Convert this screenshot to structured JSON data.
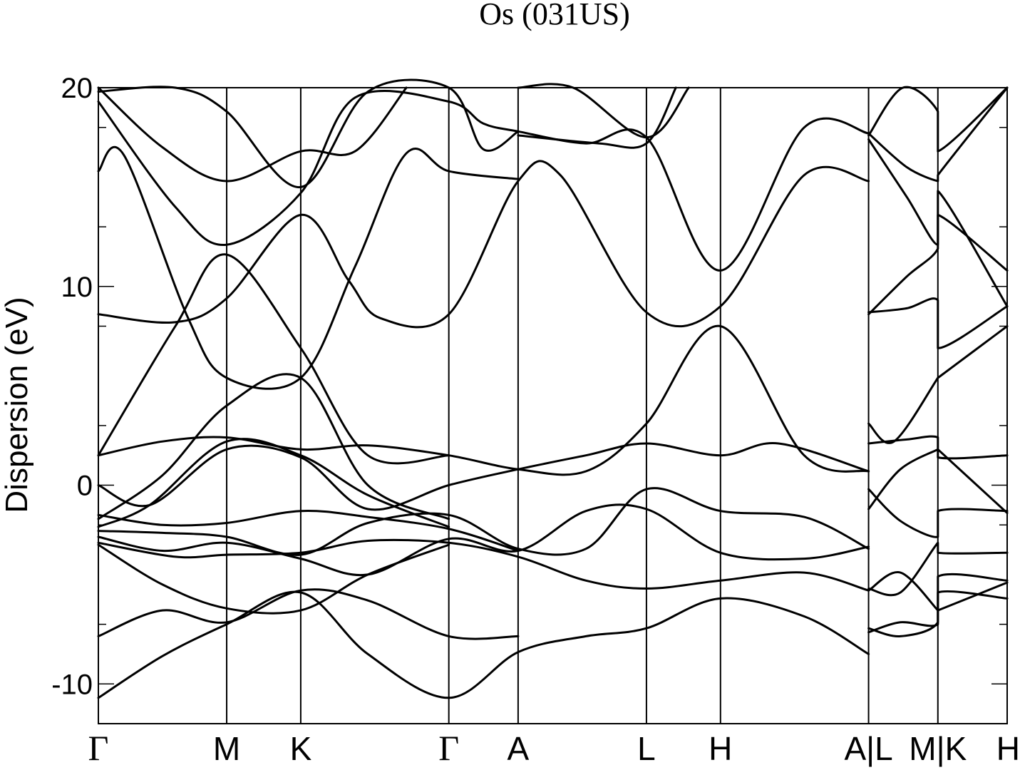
{
  "chart_data": {
    "type": "line",
    "title": "Os (031US)",
    "ylabel": "Dispersion (eV)",
    "ylim": [
      -12,
      20
    ],
    "yticks": [
      -10,
      0,
      10,
      20
    ],
    "grid": false,
    "legend": "none",
    "kpoints": [
      {
        "label": "Γ",
        "x": 0.0
      },
      {
        "label": "M",
        "x": 1.0
      },
      {
        "label": "K",
        "x": 1.577
      },
      {
        "label": "Γ",
        "x": 2.731
      },
      {
        "label": "A",
        "x": 3.271
      },
      {
        "label": "L",
        "x": 4.271
      },
      {
        "label": "H",
        "x": 4.848
      },
      {
        "label": "A|L",
        "x": 6.002
      },
      {
        "label": "M|K",
        "x": 6.542
      },
      {
        "label": "H",
        "x": 7.082
      }
    ],
    "series": [
      {
        "values": [
          [
            0,
            -10.7
          ],
          [
            0.5,
            -8.6
          ],
          [
            1.0,
            -7.0
          ],
          [
            1.577,
            -5.4
          ],
          [
            2.1,
            -8.5
          ],
          [
            2.731,
            -10.7
          ],
          [
            3.271,
            -8.4
          ],
          [
            3.8,
            -7.6
          ],
          [
            4.271,
            -7.2
          ],
          [
            4.848,
            -5.7
          ],
          [
            5.5,
            -6.6
          ],
          [
            6.002,
            -8.5
          ]
        ]
      },
      {
        "values": [
          [
            0,
            -7.6
          ],
          [
            0.5,
            -6.3
          ],
          [
            1.0,
            -6.9
          ],
          [
            1.577,
            -5.3
          ],
          [
            2.1,
            -5.8
          ],
          [
            2.731,
            -7.6
          ],
          [
            3.271,
            -7.6
          ]
        ]
      },
      {
        "values": [
          [
            0,
            -3.0
          ],
          [
            0.5,
            -5.0
          ],
          [
            1.0,
            -6.2
          ],
          [
            1.577,
            -6.3
          ],
          [
            2.1,
            -4.5
          ],
          [
            2.731,
            -3.0
          ]
        ]
      },
      {
        "values": [
          [
            0,
            -2.9
          ],
          [
            0.6,
            -3.6
          ],
          [
            1.0,
            -3.5
          ],
          [
            1.577,
            -3.4
          ],
          [
            2.1,
            -2.8
          ],
          [
            2.731,
            -2.9
          ],
          [
            3.271,
            -3.6
          ],
          [
            3.8,
            -4.8
          ],
          [
            4.271,
            -5.2
          ],
          [
            4.848,
            -4.8
          ],
          [
            5.5,
            -4.4
          ],
          [
            6.002,
            -5.3
          ]
        ]
      },
      {
        "values": [
          [
            0,
            -2.6
          ],
          [
            0.5,
            -3.3
          ],
          [
            1.0,
            -2.9
          ],
          [
            1.577,
            -3.7
          ],
          [
            2.1,
            -4.5
          ],
          [
            2.731,
            -2.7
          ],
          [
            3.271,
            -3.3
          ],
          [
            3.8,
            -1.3
          ],
          [
            4.271,
            -1.2
          ],
          [
            4.848,
            -3.4
          ],
          [
            5.5,
            -3.7
          ],
          [
            6.002,
            -3.1
          ]
        ]
      },
      {
        "values": [
          [
            0,
            -2.3
          ],
          [
            0.5,
            -2.4
          ],
          [
            1.0,
            -2.6
          ],
          [
            1.577,
            -3.5
          ],
          [
            2.1,
            -1.9
          ],
          [
            2.731,
            -1.5
          ],
          [
            3.271,
            -3.2
          ],
          [
            3.8,
            -3.2
          ],
          [
            4.271,
            -0.2
          ],
          [
            4.848,
            -1.3
          ],
          [
            5.5,
            -1.6
          ],
          [
            6.002,
            -3.2
          ]
        ]
      },
      {
        "values": [
          [
            0,
            -1.5
          ],
          [
            0.5,
            -2.0
          ],
          [
            1.0,
            -1.9
          ],
          [
            1.577,
            -1.3
          ],
          [
            2.1,
            -1.6
          ],
          [
            2.731,
            -2.2
          ],
          [
            3.271,
            -3.3
          ]
        ]
      },
      {
        "values": [
          [
            0,
            0.0
          ],
          [
            0.4,
            -1.0
          ],
          [
            1.0,
            1.8
          ],
          [
            1.577,
            1.4
          ],
          [
            2.1,
            -1.2
          ],
          [
            2.731,
            0.0
          ],
          [
            3.271,
            0.8
          ],
          [
            3.8,
            1.5
          ],
          [
            4.271,
            2.1
          ],
          [
            4.848,
            1.5
          ],
          [
            5.3,
            2.1
          ],
          [
            6.002,
            0.7
          ]
        ]
      },
      {
        "values": [
          [
            0,
            1.5
          ],
          [
            0.5,
            2.2
          ],
          [
            1.0,
            2.4
          ],
          [
            1.577,
            1.8
          ],
          [
            2.1,
            2.0
          ],
          [
            2.731,
            1.5
          ],
          [
            3.271,
            0.8
          ],
          [
            3.8,
            0.7
          ],
          [
            4.271,
            3.1
          ],
          [
            4.848,
            8.0
          ],
          [
            5.5,
            1.5
          ],
          [
            6.002,
            0.7
          ]
        ]
      },
      {
        "values": [
          [
            0,
            -2.1
          ],
          [
            0.4,
            -1.0
          ],
          [
            1.0,
            2.2
          ],
          [
            1.577,
            1.5
          ],
          [
            2.1,
            -0.5
          ],
          [
            2.731,
            -2.1
          ]
        ]
      },
      {
        "values": [
          [
            0,
            -1.7
          ],
          [
            0.5,
            0.5
          ],
          [
            1.0,
            4.0
          ],
          [
            1.577,
            5.4
          ],
          [
            2.1,
            0.0
          ],
          [
            2.731,
            -1.7
          ]
        ]
      },
      {
        "values": [
          [
            0,
            8.6
          ],
          [
            0.6,
            8.2
          ],
          [
            1.0,
            9.4
          ],
          [
            1.577,
            13.6
          ],
          [
            1.95,
            10.3
          ],
          [
            2.2,
            8.4
          ],
          [
            2.731,
            8.6
          ],
          [
            3.271,
            15.3
          ],
          [
            3.6,
            15.6
          ],
          [
            4.271,
            8.7
          ],
          [
            4.848,
            9.0
          ],
          [
            5.5,
            15.6
          ],
          [
            6.002,
            15.3
          ]
        ]
      },
      {
        "values": [
          [
            0,
            1.5
          ],
          [
            0.6,
            8.0
          ],
          [
            1.0,
            11.6
          ],
          [
            1.577,
            6.9
          ],
          [
            2.1,
            1.5
          ],
          [
            2.731,
            1.5
          ]
        ]
      },
      {
        "values": [
          [
            0,
            15.8
          ],
          [
            0.2,
            16.6
          ],
          [
            0.7,
            8.4
          ],
          [
            1.0,
            5.4
          ],
          [
            1.577,
            5.4
          ],
          [
            2.0,
            11.0
          ],
          [
            2.4,
            16.7
          ],
          [
            2.731,
            15.8
          ],
          [
            3.271,
            15.4
          ]
        ]
      },
      {
        "values": [
          [
            0,
            19.3
          ],
          [
            0.6,
            14.0
          ],
          [
            1.0,
            12.1
          ],
          [
            1.577,
            14.7
          ],
          [
            2.0,
            19.5
          ],
          [
            2.731,
            19.3
          ],
          [
            3.0,
            18.2
          ],
          [
            3.271,
            17.8
          ],
          [
            3.8,
            17.2
          ],
          [
            4.271,
            17.5
          ],
          [
            4.848,
            10.8
          ],
          [
            5.5,
            18.0
          ],
          [
            6.002,
            17.7
          ]
        ]
      },
      {
        "values": [
          [
            0,
            20.0
          ],
          [
            0.5,
            17.0
          ],
          [
            1.0,
            15.3
          ],
          [
            1.577,
            16.8
          ],
          [
            2.0,
            16.8
          ],
          [
            2.4,
            20.0
          ]
        ]
      },
      {
        "values": [
          [
            0,
            19.8
          ],
          [
            0.6,
            20.0
          ],
          [
            1.0,
            18.8
          ],
          [
            1.577,
            15.0
          ],
          [
            2.1,
            19.8
          ],
          [
            2.731,
            20.0
          ],
          [
            3.0,
            16.9
          ],
          [
            3.271,
            17.8
          ]
        ]
      },
      {
        "values": [
          [
            3.271,
            17.6
          ],
          [
            3.9,
            17.2
          ],
          [
            4.271,
            17.2
          ],
          [
            4.5,
            20.0
          ]
        ]
      },
      {
        "values": [
          [
            3.271,
            20.0
          ],
          [
            3.7,
            20.0
          ],
          [
            4.271,
            17.5
          ],
          [
            4.6,
            20.0
          ]
        ]
      },
      {
        "values": [
          [
            6.002,
            3.1
          ],
          [
            6.2,
            2.2
          ],
          [
            6.542,
            5.4
          ],
          [
            6.542,
            5.4
          ],
          [
            7.082,
            8.0
          ]
        ]
      },
      {
        "values": [
          [
            6.002,
            2.1
          ],
          [
            6.3,
            2.3
          ],
          [
            6.542,
            2.4
          ],
          [
            6.542,
            1.4
          ],
          [
            7.082,
            1.5
          ]
        ]
      },
      {
        "values": [
          [
            6.002,
            -0.2
          ],
          [
            6.25,
            -1.8
          ],
          [
            6.542,
            -2.6
          ],
          [
            6.542,
            -1.3
          ],
          [
            7.082,
            -1.3
          ]
        ]
      },
      {
        "values": [
          [
            6.002,
            -1.2
          ],
          [
            6.25,
            0.8
          ],
          [
            6.542,
            1.8
          ],
          [
            6.542,
            1.8
          ],
          [
            7.082,
            -1.4
          ]
        ]
      },
      {
        "values": [
          [
            6.002,
            -5.2
          ],
          [
            6.25,
            -5.4
          ],
          [
            6.542,
            -2.9
          ],
          [
            6.542,
            -3.4
          ],
          [
            7.082,
            -3.4
          ]
        ]
      },
      {
        "values": [
          [
            6.002,
            -7.2
          ],
          [
            6.25,
            -7.6
          ],
          [
            6.542,
            -6.9
          ],
          [
            6.542,
            -4.6
          ],
          [
            7.082,
            -4.8
          ]
        ]
      },
      {
        "values": [
          [
            6.002,
            -7.4
          ],
          [
            6.25,
            -6.9
          ],
          [
            6.542,
            -7.0
          ],
          [
            6.542,
            -5.4
          ],
          [
            7.082,
            -5.7
          ]
        ]
      },
      {
        "values": [
          [
            6.002,
            8.7
          ],
          [
            6.3,
            8.9
          ],
          [
            6.542,
            9.3
          ],
          [
            6.542,
            6.9
          ],
          [
            7.082,
            9.0
          ]
        ]
      },
      {
        "values": [
          [
            6.002,
            8.6
          ],
          [
            6.3,
            10.5
          ],
          [
            6.542,
            11.9
          ],
          [
            6.542,
            13.6
          ],
          [
            7.082,
            10.8
          ]
        ]
      },
      {
        "values": [
          [
            6.002,
            17.4
          ],
          [
            6.3,
            14.5
          ],
          [
            6.542,
            12.1
          ],
          [
            6.542,
            14.8
          ],
          [
            7.082,
            9.0
          ]
        ]
      },
      {
        "values": [
          [
            6.002,
            17.7
          ],
          [
            6.3,
            16.0
          ],
          [
            6.542,
            15.3
          ],
          [
            6.542,
            15.6
          ],
          [
            7.082,
            20.0
          ]
        ]
      },
      {
        "values": [
          [
            6.002,
            17.6
          ],
          [
            6.27,
            20.0
          ],
          [
            6.542,
            18.8
          ],
          [
            6.542,
            16.8
          ],
          [
            7.082,
            20.0
          ]
        ]
      },
      {
        "values": [
          [
            6.002,
            -5.3
          ],
          [
            6.25,
            -4.4
          ],
          [
            6.542,
            -6.3
          ],
          [
            6.542,
            -6.3
          ],
          [
            7.082,
            -4.9
          ]
        ]
      }
    ]
  }
}
